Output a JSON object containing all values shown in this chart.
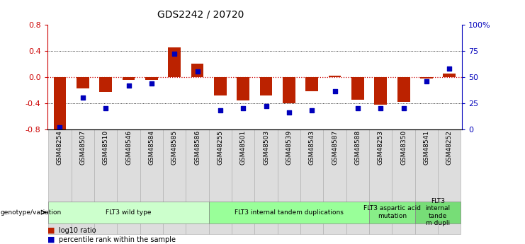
{
  "title": "GDS2242 / 20720",
  "samples": [
    "GSM48254",
    "GSM48507",
    "GSM48510",
    "GSM48546",
    "GSM48584",
    "GSM48585",
    "GSM48586",
    "GSM48255",
    "GSM48501",
    "GSM48503",
    "GSM48539",
    "GSM48543",
    "GSM48587",
    "GSM48588",
    "GSM48253",
    "GSM48350",
    "GSM48541",
    "GSM48252"
  ],
  "log10_ratio": [
    -0.82,
    -0.18,
    -0.23,
    -0.05,
    -0.05,
    0.45,
    0.2,
    -0.28,
    -0.36,
    -0.28,
    -0.4,
    -0.22,
    0.02,
    -0.35,
    -0.42,
    -0.38,
    -0.02,
    0.05
  ],
  "percentile_rank": [
    2,
    30,
    20,
    42,
    44,
    72,
    55,
    18,
    20,
    22,
    16,
    18,
    36,
    20,
    20,
    20,
    46,
    58
  ],
  "groups": [
    {
      "label": "FLT3 wild type",
      "start": 0,
      "end": 6,
      "color": "#ccffcc"
    },
    {
      "label": "FLT3 internal tandem duplications",
      "start": 7,
      "end": 13,
      "color": "#99ff99"
    },
    {
      "label": "FLT3 aspartic acid\nmutation",
      "start": 14,
      "end": 15,
      "color": "#88ee88"
    },
    {
      "label": "FLT3\ninternal\ntande\nm dupli",
      "start": 16,
      "end": 17,
      "color": "#77dd77"
    }
  ],
  "bar_color": "#bb2200",
  "dot_color": "#0000bb",
  "ylim_left": [
    -0.8,
    0.8
  ],
  "yticks_left": [
    -0.8,
    -0.4,
    0.0,
    0.4,
    0.8
  ],
  "yticks_right": [
    0,
    25,
    50,
    75,
    100
  ],
  "yticklabels_right": [
    "0",
    "25",
    "50",
    "75",
    "100%"
  ],
  "dotted_lines_black": [
    -0.4,
    0.4
  ],
  "zero_line_color": "#cc0000"
}
